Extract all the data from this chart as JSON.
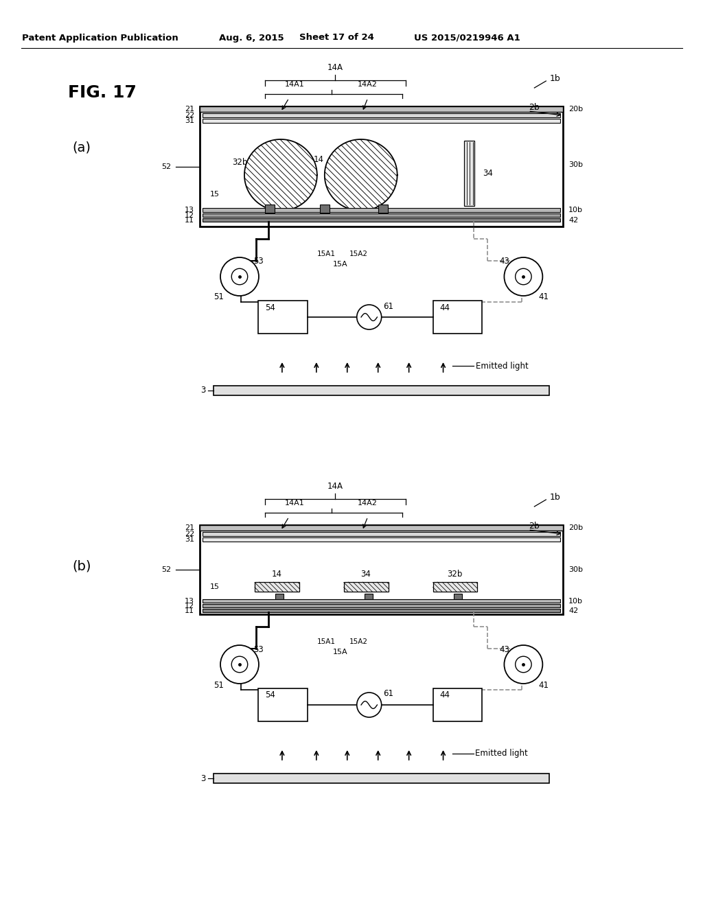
{
  "bg_color": "#ffffff",
  "header_text": "Patent Application Publication",
  "header_date": "Aug. 6, 2015",
  "header_sheet": "Sheet 17 of 24",
  "header_patent": "US 2015/0219946 A1",
  "fig_title": "FIG. 17",
  "panel_a_label": "(a)",
  "panel_b_label": "(b)"
}
